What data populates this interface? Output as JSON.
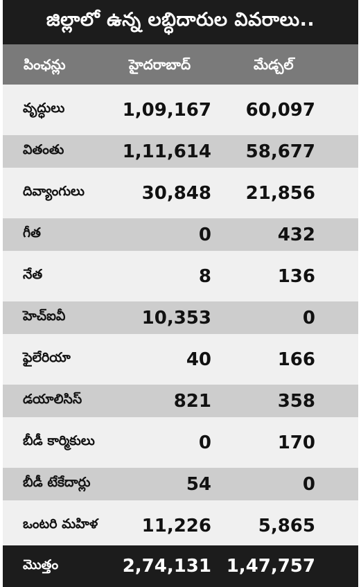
{
  "title": "జిల్లాలో ఉన్న లబ్ధిదారుల వివరాలు..",
  "header": {
    "col1": "పింఛన్లు",
    "col2": "హైదరాబాద్",
    "col3": "మేడ్చల్"
  },
  "rows": [
    {
      "label": "వృద్ధులు",
      "hyderabad": "1,09,167",
      "medchal": "60,097"
    },
    {
      "label": "వితంతు",
      "hyderabad": "1,11,614",
      "medchal": "58,677"
    },
    {
      "label": "దివ్యాంగులు",
      "hyderabad": "30,848",
      "medchal": "21,856"
    },
    {
      "label": "గీత",
      "hyderabad": "0",
      "medchal": "432"
    },
    {
      "label": "నేత",
      "hyderabad": "8",
      "medchal": "136"
    },
    {
      "label": "హెచ్ఐవీ",
      "hyderabad": "10,353",
      "medchal": "0"
    },
    {
      "label": "ఫైలేరియా",
      "hyderabad": "40",
      "medchal": "166"
    },
    {
      "label": "డయాలిసిస్",
      "hyderabad": "821",
      "medchal": "358"
    },
    {
      "label": "బీడీ కార్మికులు",
      "hyderabad": "0",
      "medchal": "170"
    },
    {
      "label": "బీడీ టేకేదార్లు",
      "hyderabad": "54",
      "medchal": "0"
    },
    {
      "label": "ఒంటరి మహిళ",
      "hyderabad": "11,226",
      "medchal": "5,865"
    }
  ],
  "total": {
    "label": "మొత్తం",
    "hyderabad": "2,74,131",
    "medchal": "1,47,757"
  }
}
